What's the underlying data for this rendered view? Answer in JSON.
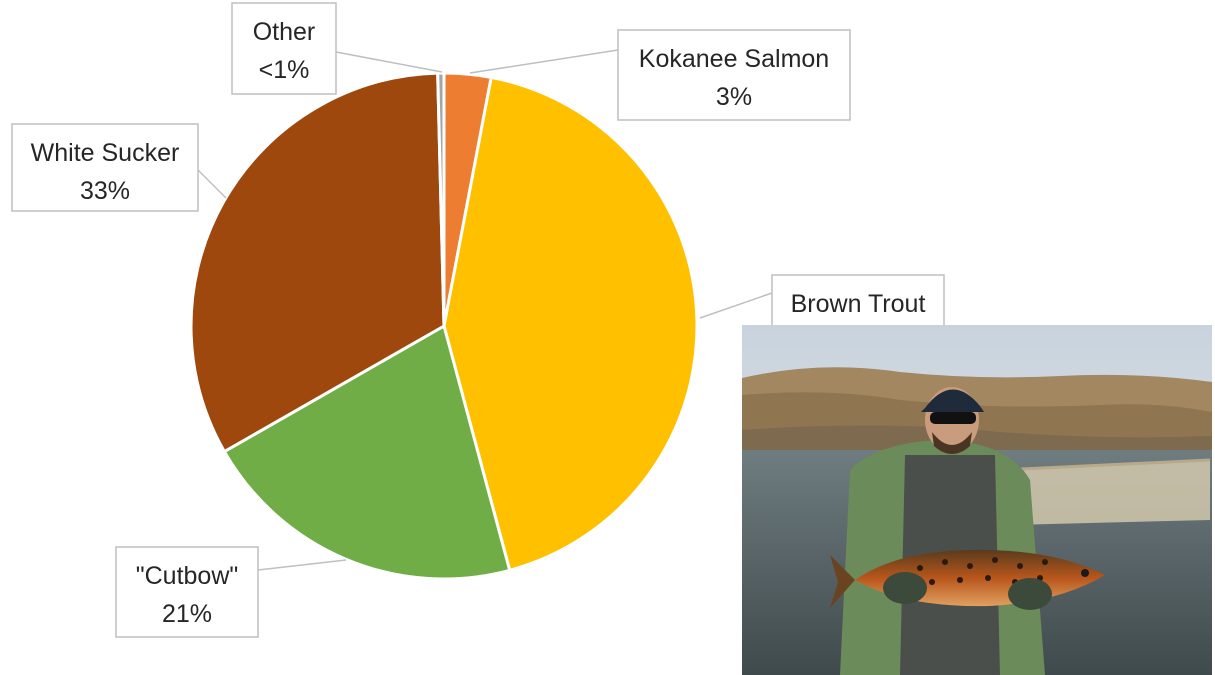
{
  "chart_data": {
    "type": "pie",
    "title": "",
    "slices": [
      {
        "name": "Kokanee Salmon",
        "value": 3,
        "label": "3%",
        "color": "#ED7D31"
      },
      {
        "name": "Brown Trout",
        "value": 43,
        "label": "43%",
        "color": "#FFC000"
      },
      {
        "name": "\"Cutbow\"",
        "value": 21,
        "label": "21%",
        "color": "#70AD47"
      },
      {
        "name": "White Sucker",
        "value": 33,
        "label": "33%",
        "color": "#9E480E"
      },
      {
        "name": "Other",
        "value": 0.4,
        "label": "<1%",
        "color": "#A5A5A5"
      }
    ],
    "legend": "none",
    "data_labels": "callouts"
  },
  "photo": {
    "subject": "angler-holding-brown-trout-photo"
  }
}
